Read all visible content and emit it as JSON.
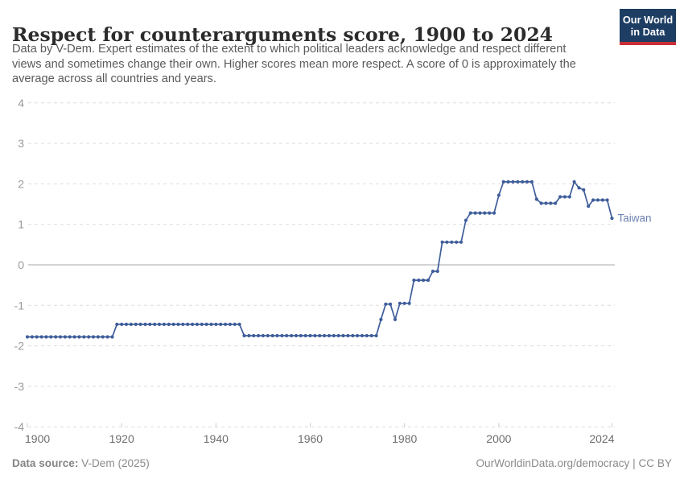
{
  "header": {
    "title": "Respect for counterarguments score, 1900 to 2024",
    "subtitle_lines": [
      "Data by V-Dem. Expert estimates of the extent to which political leaders acknowledge and respect different",
      "views and sometimes change their own. Higher scores mean more respect. A score of 0 is approximately the",
      "average across all countries and years."
    ],
    "logo": {
      "line1": "Our World",
      "line2": "in Data"
    }
  },
  "footer": {
    "source_label": "Data source:",
    "source_value": "V-Dem (2025)",
    "link": "OurWorldinData.org/democracy | CC BY"
  },
  "colors": {
    "line": "#3e5d9a",
    "series_label": "#6d82b2",
    "grid": "#dddddd",
    "zero_line": "#a7a7a7",
    "x_tick_label": "#6e6e6e",
    "y_tick_label": "#9a9a9a",
    "tick_mark": "#cccccc",
    "logo_bg": "#1d3d63",
    "logo_red": "#c72f37"
  },
  "chart_data": {
    "type": "line",
    "title": "Respect for counterarguments score, 1900 to 2024",
    "xlabel": "",
    "ylabel": "",
    "xlim": [
      1900,
      2024
    ],
    "ylim": [
      -4,
      4
    ],
    "x_ticks": [
      1900,
      1920,
      1940,
      1960,
      1980,
      2000,
      2024
    ],
    "y_ticks": [
      4,
      3,
      2,
      1,
      0,
      -1,
      -2,
      -3,
      -4
    ],
    "grid": "horizontal-dashed",
    "legend_position": "end-of-line-label",
    "series": [
      {
        "name": "Taiwan",
        "start_year": 1900,
        "values": [
          -1.78,
          -1.78,
          -1.78,
          -1.78,
          -1.78,
          -1.78,
          -1.78,
          -1.78,
          -1.78,
          -1.78,
          -1.78,
          -1.78,
          -1.78,
          -1.78,
          -1.78,
          -1.78,
          -1.78,
          -1.78,
          -1.78,
          -1.47,
          -1.47,
          -1.47,
          -1.47,
          -1.47,
          -1.47,
          -1.47,
          -1.47,
          -1.47,
          -1.47,
          -1.47,
          -1.47,
          -1.47,
          -1.47,
          -1.47,
          -1.47,
          -1.47,
          -1.47,
          -1.47,
          -1.47,
          -1.47,
          -1.47,
          -1.47,
          -1.47,
          -1.47,
          -1.47,
          -1.47,
          -1.75,
          -1.75,
          -1.75,
          -1.75,
          -1.75,
          -1.75,
          -1.75,
          -1.75,
          -1.75,
          -1.75,
          -1.75,
          -1.75,
          -1.75,
          -1.75,
          -1.75,
          -1.75,
          -1.75,
          -1.75,
          -1.75,
          -1.75,
          -1.75,
          -1.75,
          -1.75,
          -1.75,
          -1.75,
          -1.75,
          -1.75,
          -1.75,
          -1.75,
          -1.35,
          -0.97,
          -0.97,
          -1.35,
          -0.95,
          -0.95,
          -0.95,
          -0.38,
          -0.38,
          -0.38,
          -0.38,
          -0.16,
          -0.16,
          0.56,
          0.56,
          0.56,
          0.56,
          0.56,
          1.1,
          1.28,
          1.28,
          1.28,
          1.28,
          1.28,
          1.28,
          1.72,
          2.05,
          2.05,
          2.05,
          2.05,
          2.05,
          2.05,
          2.05,
          1.62,
          1.52,
          1.52,
          1.52,
          1.52,
          1.68,
          1.68,
          1.68,
          2.05,
          1.9,
          1.85,
          1.45,
          1.6,
          1.6,
          1.6,
          1.6,
          1.15
        ]
      }
    ]
  }
}
